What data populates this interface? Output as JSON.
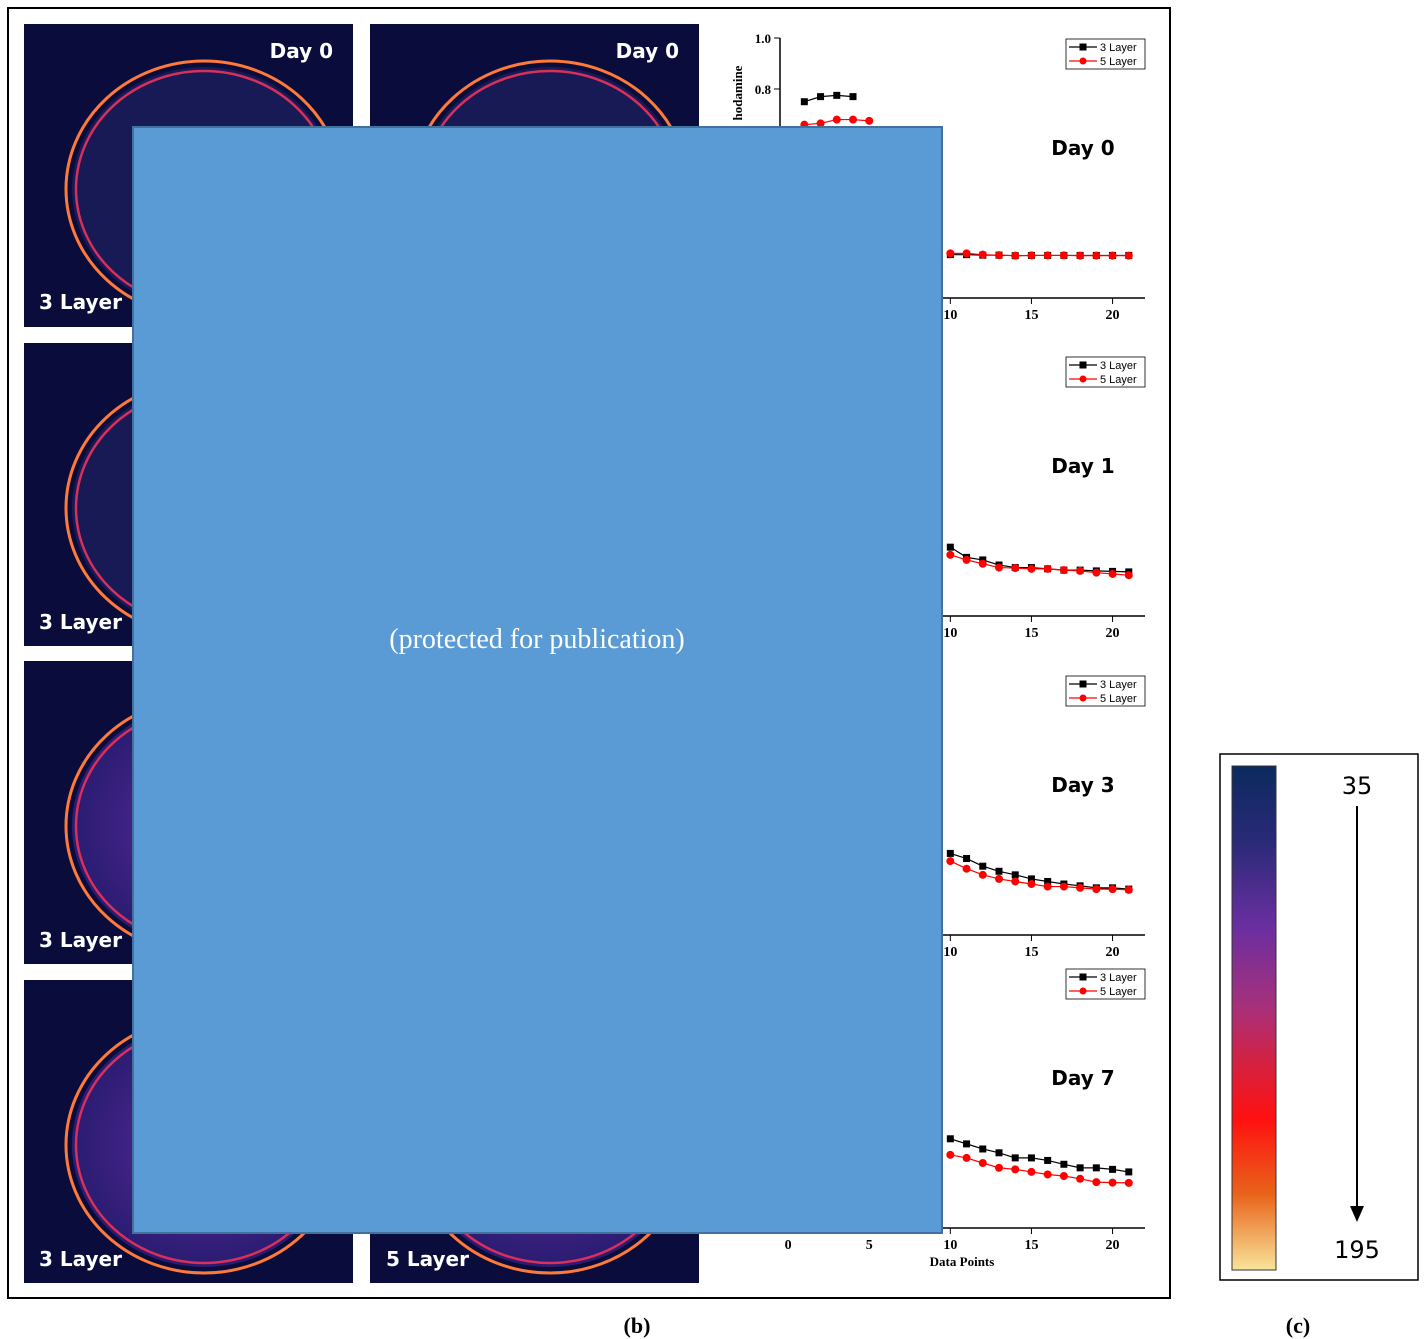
{
  "images": [
    {
      "top": "Day 0",
      "bottom": "3 Layer"
    },
    {
      "top": "Day 0"
    },
    {
      "bottom": "3 Layer"
    },
    {
      "bottom": "3 Layer"
    },
    {
      "bottom": "3 Layer"
    },
    {
      "bottom": "5 Layer"
    }
  ],
  "chart_data": [
    {
      "type": "line",
      "annotation": "Day 0",
      "y_label": "hodamine",
      "x": [
        1,
        2,
        3,
        4,
        5,
        6,
        7,
        8,
        9,
        10,
        11,
        12,
        13,
        14,
        15,
        16,
        17,
        18,
        19,
        20,
        21
      ],
      "series": [
        {
          "name": "3 Layer",
          "color": "#000000",
          "marker": "square",
          "values": [
            0.75,
            0.77,
            0.775,
            0.77,
            null,
            null,
            null,
            null,
            null,
            0.15,
            0.15,
            0.148,
            0.148,
            0.146,
            0.147,
            0.147,
            0.147,
            0.147,
            0.147,
            0.147,
            0.147
          ]
        },
        {
          "name": "5 Layer",
          "color": "#ff0000",
          "marker": "circle",
          "values": [
            0.66,
            0.665,
            0.68,
            0.68,
            0.675,
            null,
            null,
            null,
            null,
            0.155,
            0.155,
            0.15,
            0.148,
            0.146,
            0.147,
            0.147,
            0.147,
            0.146,
            0.146,
            0.146,
            0.146
          ]
        }
      ],
      "xlim": [
        -0.5,
        22
      ],
      "ylim": [
        -0.02,
        1.0
      ],
      "xticks": [
        10,
        15,
        20
      ],
      "yticks": [
        0.8,
        {
          "value": 1.0,
          "label": "1.0"
        }
      ],
      "legend": "upper right"
    },
    {
      "type": "line",
      "annotation": "Day 1",
      "x": [
        1,
        2,
        3,
        4,
        5,
        6,
        7,
        8,
        9,
        10,
        11,
        12,
        13,
        14,
        15,
        16,
        17,
        18,
        19,
        20,
        21
      ],
      "series": [
        {
          "name": "3 Layer",
          "color": "#000000",
          "marker": "square",
          "values": [
            null,
            null,
            null,
            null,
            null,
            null,
            null,
            null,
            null,
            0.25,
            0.21,
            0.2,
            0.18,
            0.17,
            0.17,
            0.165,
            0.16,
            0.16,
            0.157,
            0.155,
            0.153
          ]
        },
        {
          "name": "5 Layer",
          "color": "#ff0000",
          "marker": "circle",
          "values": [
            null,
            null,
            null,
            null,
            null,
            null,
            null,
            null,
            null,
            0.22,
            0.2,
            0.185,
            0.17,
            0.168,
            0.165,
            0.165,
            0.16,
            0.157,
            0.15,
            0.145,
            0.14
          ]
        }
      ],
      "xlim": [
        -0.5,
        22
      ],
      "ylim": [
        -0.02,
        1.0
      ],
      "xticks": [
        10,
        15,
        20
      ],
      "legend": "upper right"
    },
    {
      "type": "line",
      "annotation": "Day 3",
      "x": [
        1,
        2,
        3,
        4,
        5,
        6,
        7,
        8,
        9,
        10,
        11,
        12,
        13,
        14,
        15,
        16,
        17,
        18,
        19,
        20,
        21
      ],
      "series": [
        {
          "name": "3 Layer",
          "color": "#000000",
          "marker": "square",
          "values": [
            null,
            null,
            null,
            null,
            null,
            null,
            null,
            null,
            null,
            0.3,
            0.28,
            0.25,
            0.23,
            0.216,
            0.2,
            0.19,
            0.18,
            0.173,
            0.165,
            0.165,
            0.16
          ]
        },
        {
          "name": "5 Layer",
          "color": "#ff0000",
          "marker": "circle",
          "values": [
            null,
            null,
            null,
            null,
            null,
            null,
            null,
            null,
            null,
            0.27,
            0.24,
            0.216,
            0.2,
            0.19,
            0.18,
            0.17,
            0.17,
            0.165,
            0.16,
            0.16,
            0.157
          ]
        }
      ],
      "xlim": [
        -0.5,
        22
      ],
      "ylim": [
        -0.02,
        1.0
      ],
      "xticks": [
        10,
        15,
        20
      ],
      "legend": "upper right"
    },
    {
      "type": "line",
      "annotation": "Day 7",
      "x_label": "Data Points",
      "x": [
        1,
        2,
        3,
        4,
        5,
        6,
        7,
        8,
        9,
        10,
        11,
        12,
        13,
        14,
        15,
        16,
        17,
        18,
        19,
        20,
        21
      ],
      "series": [
        {
          "name": "3 Layer",
          "color": "#000000",
          "marker": "square",
          "values": [
            null,
            null,
            null,
            null,
            null,
            null,
            null,
            null,
            null,
            0.33,
            0.31,
            0.29,
            0.275,
            0.255,
            0.255,
            0.245,
            0.23,
            0.216,
            0.216,
            0.21,
            0.2
          ]
        },
        {
          "name": "5 Layer",
          "color": "#ff0000",
          "marker": "circle",
          "values": [
            null,
            null,
            null,
            null,
            null,
            null,
            null,
            null,
            null,
            0.267,
            0.255,
            0.235,
            0.216,
            0.21,
            0.2,
            0.19,
            0.184,
            0.173,
            0.16,
            0.158,
            0.157
          ]
        }
      ],
      "xlim": [
        -0.5,
        22
      ],
      "ylim": [
        -0.02,
        1.0
      ],
      "xticks": [
        0,
        5,
        10,
        15,
        20
      ],
      "legend": "upper right"
    }
  ],
  "overlay": {
    "text": "(protected for publication)"
  },
  "colorbar": {
    "labels": [
      35,
      195
    ]
  },
  "panel_labels": [
    "(b)",
    "(c)"
  ]
}
